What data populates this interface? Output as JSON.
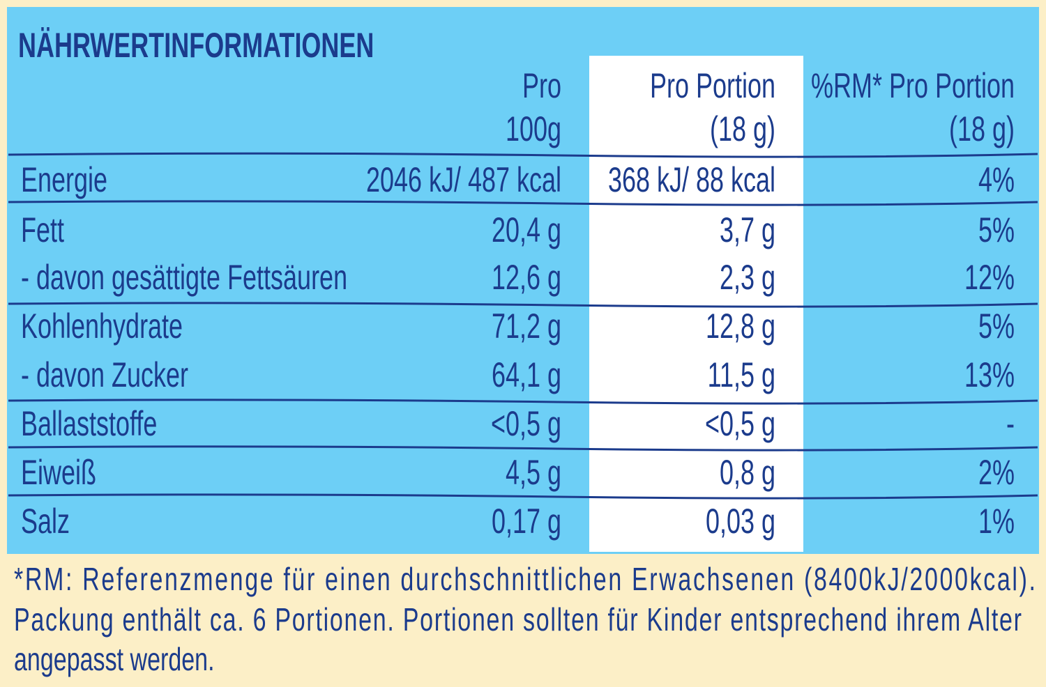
{
  "header": {
    "title": "NÄHRWERTINFORMATIONEN",
    "columns": [
      [
        "Pro",
        "100g"
      ],
      [
        "Pro Portion",
        "(18 g)"
      ],
      [
        "%RM* Pro Portion",
        "(18 g)"
      ]
    ]
  },
  "table": {
    "rows": [
      [
        "Energie",
        "2046 kJ/ 487 kcal",
        "368 kJ/ 88 kcal",
        "4%"
      ],
      [
        "Fett",
        "20,4 g",
        "3,7 g",
        "5%"
      ],
      [
        "- davon gesättigte Fettsäuren",
        "12,6 g",
        "2,3 g",
        "12%"
      ],
      [
        "Kohlenhydrate",
        "71,2 g",
        "12,8 g",
        "5%"
      ],
      [
        "- davon Zucker",
        "64,1 g",
        "11,5 g",
        "13%"
      ],
      [
        "Ballaststoffe",
        "<0,5 g",
        "<0,5 g",
        "-"
      ],
      [
        "Eiweiß",
        "4,5 g",
        "0,8 g",
        "2%"
      ],
      [
        "Salz",
        "0,17 g",
        "0,03 g",
        "1%"
      ]
    ]
  },
  "footnote": [
    "*RM: Referenzmenge für einen durchschnittlichen Erwachsenen (8400kJ/2000kcal).",
    "Packung enthält ca. 6 Portionen. Portionen sollten für Kinder entsprechend ihrem Alter",
    "angepasst  werden."
  ]
}
